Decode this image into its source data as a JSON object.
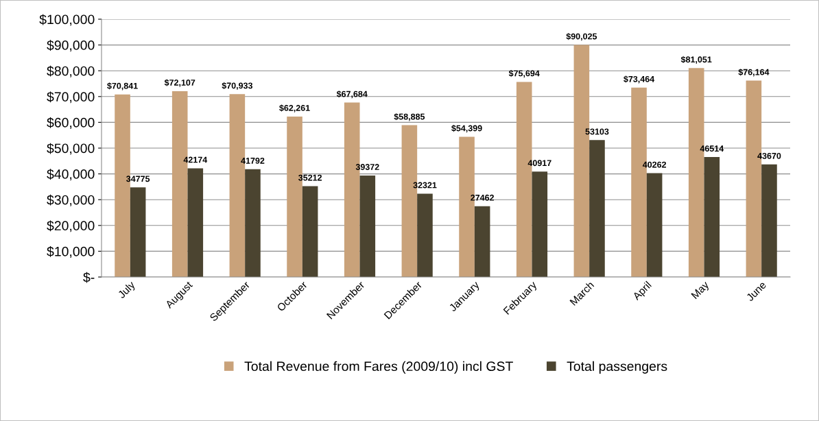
{
  "chart_data": {
    "type": "bar",
    "categories": [
      "July",
      "August",
      "September",
      "October",
      "November",
      "December",
      "January",
      "February",
      "March",
      "April",
      "May",
      "June"
    ],
    "series": [
      {
        "name": "Total Revenue from Fares (2009/10) incl GST",
        "color": "#c9a27a",
        "values": [
          70841,
          72107,
          70933,
          62261,
          67684,
          58885,
          54399,
          75694,
          90025,
          73464,
          81051,
          76164
        ],
        "value_labels": [
          "$70,841",
          "$72,107",
          "$70,933",
          "$62,261",
          "$67,684",
          "$58,885",
          "$54,399",
          "$75,694",
          "$90,025",
          "$73,464",
          "$81,051",
          "$76,164"
        ]
      },
      {
        "name": "Total passengers",
        "color": "#4b4430",
        "values": [
          34775,
          42174,
          41792,
          35212,
          39372,
          32321,
          27462,
          40917,
          53103,
          40262,
          46514,
          43670
        ],
        "value_labels": [
          "34775",
          "42174",
          "41792",
          "35212",
          "39372",
          "32321",
          "27462",
          "40917",
          "53103",
          "40262",
          "46514",
          "43670"
        ]
      }
    ],
    "ylim": [
      0,
      100000
    ],
    "yticks": [
      {
        "value": 0,
        "label": "$-"
      },
      {
        "value": 10000,
        "label": "$10,000"
      },
      {
        "value": 20000,
        "label": "$20,000"
      },
      {
        "value": 30000,
        "label": "$30,000"
      },
      {
        "value": 40000,
        "label": "$40,000"
      },
      {
        "value": 50000,
        "label": "$50,000"
      },
      {
        "value": 60000,
        "label": "$60,000"
      },
      {
        "value": 70000,
        "label": "$70,000"
      },
      {
        "value": 80000,
        "label": "$80,000"
      },
      {
        "value": 90000,
        "label": "$90,000"
      },
      {
        "value": 100000,
        "label": "$100,000"
      }
    ],
    "grid": "y",
    "legend": "bottom"
  }
}
